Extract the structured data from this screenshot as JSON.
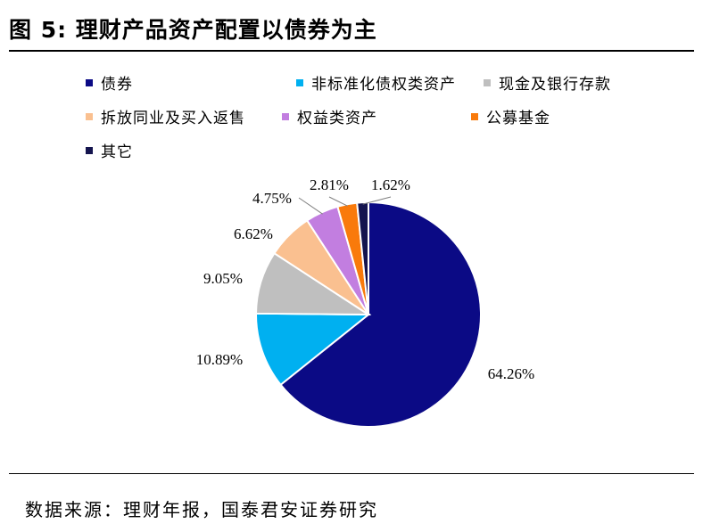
{
  "figure": {
    "title": "图 5:  理财产品资产配置以债券为主",
    "source": "数据来源：理财年报，国泰君安证券研究"
  },
  "chart_data": {
    "type": "pie",
    "title": "",
    "slices": [
      {
        "name": "债券",
        "value": 64.26,
        "label": "64.26%",
        "color": "#0b0a85"
      },
      {
        "name": "非标准化债权类资产",
        "value": 10.89,
        "label": "10.89%",
        "color": "#00b0f0"
      },
      {
        "name": "现金及银行存款",
        "value": 9.05,
        "label": "9.05%",
        "color": "#bfbfbf"
      },
      {
        "name": "拆放同业及买入返售",
        "value": 6.62,
        "label": "6.62%",
        "color": "#fac090"
      },
      {
        "name": "权益类资产",
        "value": 4.75,
        "label": "4.75%",
        "color": "#c27ee0"
      },
      {
        "name": "公募基金",
        "value": 2.81,
        "label": "2.81%",
        "color": "#f97a0b"
      },
      {
        "name": "其它",
        "value": 1.62,
        "label": "1.62%",
        "color": "#14144e"
      }
    ],
    "legend_position": "top",
    "start_angle": "12 o'clock",
    "direction": "clockwise"
  }
}
